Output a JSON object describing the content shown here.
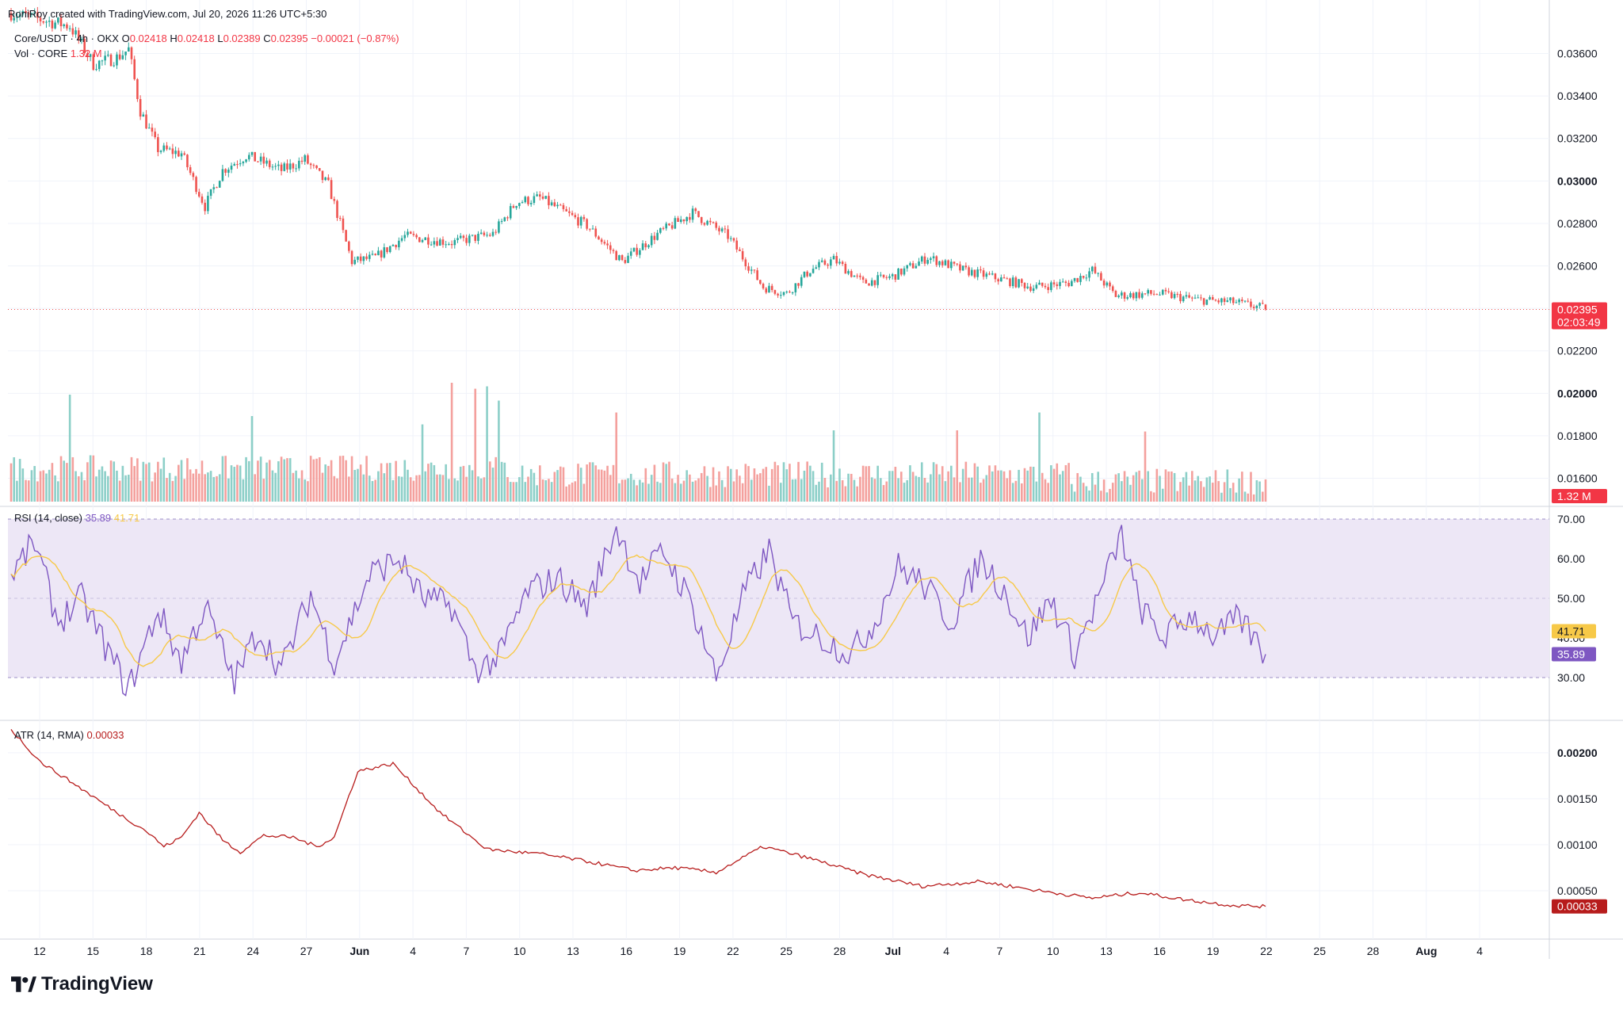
{
  "header": {
    "credit": "RoniRoy created with TradingView.com, Jul 20, 2026 11:26 UTC+5:30",
    "symbol_line": "Core/USDT · 4h · OKX",
    "open_label": "O",
    "open_value": "0.02418",
    "high_label": "H",
    "high_value": "0.02418",
    "low_label": "L",
    "low_value": "0.02389",
    "close_label": "C",
    "close_value": "0.02395",
    "change": "−0.00021 (−0.87%)",
    "vol_label": "Vol · CORE",
    "vol_value": "1.32 M"
  },
  "rsi_header": {
    "label": "RSI (14, close)",
    "rsi_value": "35.89",
    "ma_value": "41.71"
  },
  "atr_header": {
    "label": "ATR (14, RMA)",
    "value": "0.00033"
  },
  "footer": {
    "brand": "TradingView"
  },
  "colors": {
    "up": "#26a69a",
    "down": "#ef5350",
    "vol_up": "#8ccfc8",
    "vol_down": "#f4a09d",
    "rsi": "#7e57c2",
    "rsi_ma": "#f7c948",
    "rsi_band": "#ede7f6",
    "atr": "#b71c1c",
    "grid": "#f0f3fa",
    "axis_text": "#131722"
  },
  "chart_data": [
    {
      "type": "candlestick",
      "title": "Core/USDT · 4h · OKX",
      "timeframe": "4h",
      "x_ticks": [
        "12",
        "15",
        "18",
        "21",
        "24",
        "27",
        "Jun",
        "4",
        "7",
        "10",
        "13",
        "16",
        "19",
        "22",
        "25",
        "28",
        "Jul",
        "4",
        "7",
        "10",
        "13",
        "16",
        "19",
        "22",
        "25",
        "28",
        "Aug",
        "4"
      ],
      "y_ticks": [
        "0.03600",
        "0.03400",
        "0.03200",
        "0.03000",
        "0.02800",
        "0.02600",
        "0.02400",
        "0.02200",
        "0.02000",
        "0.01800",
        "0.01600"
      ],
      "ylim": [
        0.0149,
        0.0374
      ],
      "last_price": "0.02395",
      "countdown": "02:03:49",
      "trend_anchors": [
        {
          "bar": 0,
          "price": 0.0379
        },
        {
          "bar": 20,
          "price": 0.0373
        },
        {
          "bar": 28,
          "price": 0.0355
        },
        {
          "bar": 36,
          "price": 0.0358
        },
        {
          "bar": 40,
          "price": 0.0362
        },
        {
          "bar": 44,
          "price": 0.0333
        },
        {
          "bar": 50,
          "price": 0.0315
        },
        {
          "bar": 58,
          "price": 0.0313
        },
        {
          "bar": 66,
          "price": 0.0288
        },
        {
          "bar": 72,
          "price": 0.0305
        },
        {
          "bar": 80,
          "price": 0.0312
        },
        {
          "bar": 92,
          "price": 0.0305
        },
        {
          "bar": 100,
          "price": 0.031
        },
        {
          "bar": 108,
          "price": 0.0298
        },
        {
          "bar": 116,
          "price": 0.0262
        },
        {
          "bar": 124,
          "price": 0.0264
        },
        {
          "bar": 134,
          "price": 0.0274
        },
        {
          "bar": 150,
          "price": 0.0271
        },
        {
          "bar": 164,
          "price": 0.0275
        },
        {
          "bar": 172,
          "price": 0.029
        },
        {
          "bar": 180,
          "price": 0.0292
        },
        {
          "bar": 196,
          "price": 0.0279
        },
        {
          "bar": 208,
          "price": 0.0262
        },
        {
          "bar": 220,
          "price": 0.0275
        },
        {
          "bar": 232,
          "price": 0.0285
        },
        {
          "bar": 244,
          "price": 0.0274
        },
        {
          "bar": 256,
          "price": 0.025
        },
        {
          "bar": 264,
          "price": 0.0247
        },
        {
          "bar": 272,
          "price": 0.0258
        },
        {
          "bar": 280,
          "price": 0.0263
        },
        {
          "bar": 290,
          "price": 0.0252
        },
        {
          "bar": 300,
          "price": 0.0255
        },
        {
          "bar": 312,
          "price": 0.0264
        },
        {
          "bar": 324,
          "price": 0.0258
        },
        {
          "bar": 336,
          "price": 0.0254
        },
        {
          "bar": 348,
          "price": 0.025
        },
        {
          "bar": 360,
          "price": 0.0252
        },
        {
          "bar": 368,
          "price": 0.0258
        },
        {
          "bar": 376,
          "price": 0.0246
        },
        {
          "bar": 390,
          "price": 0.0247
        },
        {
          "bar": 404,
          "price": 0.0244
        },
        {
          "bar": 416,
          "price": 0.0243
        },
        {
          "bar": 427,
          "price": 0.024
        }
      ],
      "bars_total": 428
    },
    {
      "type": "bar",
      "title": "Vol · CORE",
      "last_value": "1.32 M",
      "spikes": [
        {
          "bar": 20,
          "rel": 0.9
        },
        {
          "bar": 82,
          "rel": 0.72
        },
        {
          "bar": 140,
          "rel": 0.65
        },
        {
          "bar": 150,
          "rel": 1.0
        },
        {
          "bar": 158,
          "rel": 0.95
        },
        {
          "bar": 162,
          "rel": 0.97
        },
        {
          "bar": 166,
          "rel": 0.85
        },
        {
          "bar": 206,
          "rel": 0.75
        },
        {
          "bar": 280,
          "rel": 0.6
        },
        {
          "bar": 322,
          "rel": 0.6
        },
        {
          "bar": 350,
          "rel": 0.75
        },
        {
          "bar": 386,
          "rel": 0.59
        }
      ]
    },
    {
      "type": "line",
      "title": "RSI (14, close)",
      "series": [
        {
          "name": "RSI",
          "last": 35.89
        },
        {
          "name": "RSI-based MA",
          "last": 41.71
        }
      ],
      "y_ticks": [
        "70.00",
        "60.00",
        "50.00",
        "40.00",
        "30.00"
      ],
      "ylim": [
        20,
        72
      ],
      "band": [
        30,
        70
      ],
      "rsi_anchors": [
        {
          "bar": 0,
          "v": 56
        },
        {
          "bar": 8,
          "v": 64
        },
        {
          "bar": 16,
          "v": 44
        },
        {
          "bar": 24,
          "v": 50
        },
        {
          "bar": 34,
          "v": 35
        },
        {
          "bar": 40,
          "v": 27
        },
        {
          "bar": 50,
          "v": 47
        },
        {
          "bar": 58,
          "v": 34
        },
        {
          "bar": 66,
          "v": 48
        },
        {
          "bar": 76,
          "v": 29
        },
        {
          "bar": 84,
          "v": 42
        },
        {
          "bar": 92,
          "v": 32
        },
        {
          "bar": 102,
          "v": 51
        },
        {
          "bar": 110,
          "v": 34
        },
        {
          "bar": 122,
          "v": 56
        },
        {
          "bar": 132,
          "v": 60
        },
        {
          "bar": 140,
          "v": 50
        },
        {
          "bar": 150,
          "v": 48
        },
        {
          "bar": 158,
          "v": 32
        },
        {
          "bar": 166,
          "v": 35
        },
        {
          "bar": 176,
          "v": 52
        },
        {
          "bar": 186,
          "v": 55
        },
        {
          "bar": 196,
          "v": 48
        },
        {
          "bar": 206,
          "v": 68
        },
        {
          "bar": 214,
          "v": 54
        },
        {
          "bar": 222,
          "v": 62
        },
        {
          "bar": 232,
          "v": 48
        },
        {
          "bar": 240,
          "v": 30
        },
        {
          "bar": 250,
          "v": 52
        },
        {
          "bar": 258,
          "v": 62
        },
        {
          "bar": 266,
          "v": 44
        },
        {
          "bar": 276,
          "v": 40
        },
        {
          "bar": 286,
          "v": 36
        },
        {
          "bar": 294,
          "v": 44
        },
        {
          "bar": 302,
          "v": 58
        },
        {
          "bar": 310,
          "v": 54
        },
        {
          "bar": 320,
          "v": 44
        },
        {
          "bar": 330,
          "v": 60
        },
        {
          "bar": 338,
          "v": 52
        },
        {
          "bar": 346,
          "v": 40
        },
        {
          "bar": 354,
          "v": 50
        },
        {
          "bar": 362,
          "v": 36
        },
        {
          "bar": 370,
          "v": 50
        },
        {
          "bar": 378,
          "v": 66
        },
        {
          "bar": 384,
          "v": 48
        },
        {
          "bar": 392,
          "v": 40
        },
        {
          "bar": 402,
          "v": 46
        },
        {
          "bar": 410,
          "v": 40
        },
        {
          "bar": 418,
          "v": 45
        },
        {
          "bar": 427,
          "v": 35.89
        }
      ]
    },
    {
      "type": "line",
      "title": "ATR (14, RMA)",
      "series": [
        {
          "name": "ATR",
          "last": 0.00033
        }
      ],
      "y_ticks": [
        "0.00200",
        "0.00150",
        "0.00100",
        "0.00050"
      ],
      "ylim": [
        0.0,
        0.0023
      ],
      "atr_anchors": [
        {
          "bar": 0,
          "v": 0.00225
        },
        {
          "bar": 10,
          "v": 0.0019
        },
        {
          "bar": 22,
          "v": 0.00165
        },
        {
          "bar": 36,
          "v": 0.00135
        },
        {
          "bar": 46,
          "v": 0.00115
        },
        {
          "bar": 52,
          "v": 0.00098
        },
        {
          "bar": 58,
          "v": 0.00108
        },
        {
          "bar": 64,
          "v": 0.00135
        },
        {
          "bar": 72,
          "v": 0.00105
        },
        {
          "bar": 78,
          "v": 0.00092
        },
        {
          "bar": 86,
          "v": 0.0011
        },
        {
          "bar": 96,
          "v": 0.00108
        },
        {
          "bar": 104,
          "v": 0.00098
        },
        {
          "bar": 110,
          "v": 0.00108
        },
        {
          "bar": 118,
          "v": 0.0018
        },
        {
          "bar": 130,
          "v": 0.00188
        },
        {
          "bar": 146,
          "v": 0.00135
        },
        {
          "bar": 162,
          "v": 0.00095
        },
        {
          "bar": 180,
          "v": 0.0009
        },
        {
          "bar": 196,
          "v": 0.00082
        },
        {
          "bar": 212,
          "v": 0.00072
        },
        {
          "bar": 226,
          "v": 0.00075
        },
        {
          "bar": 240,
          "v": 0.0007
        },
        {
          "bar": 256,
          "v": 0.00098
        },
        {
          "bar": 272,
          "v": 0.00085
        },
        {
          "bar": 290,
          "v": 0.00068
        },
        {
          "bar": 310,
          "v": 0.00055
        },
        {
          "bar": 330,
          "v": 0.0006
        },
        {
          "bar": 350,
          "v": 0.0005
        },
        {
          "bar": 368,
          "v": 0.00042
        },
        {
          "bar": 384,
          "v": 0.00048
        },
        {
          "bar": 400,
          "v": 0.0004
        },
        {
          "bar": 416,
          "v": 0.00034
        },
        {
          "bar": 427,
          "v": 0.00033
        }
      ]
    }
  ]
}
